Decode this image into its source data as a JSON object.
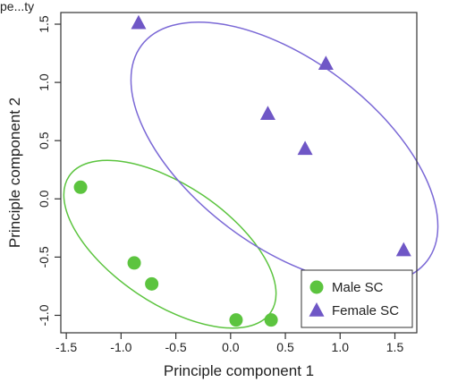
{
  "top_text": "pe...ty",
  "chart_data": {
    "type": "scatter",
    "xlabel": "Principle component 1",
    "ylabel": "Principle component 2",
    "xlim": [
      -1.55,
      1.7
    ],
    "ylim": [
      -1.15,
      1.6
    ],
    "xticks": [
      -1.5,
      -1.0,
      -0.5,
      0.0,
      0.5,
      1.0,
      1.5
    ],
    "xtick_labels": [
      "-1.5",
      "-1.0",
      "-0.5",
      "0.0",
      "0.5",
      "1.0",
      "1.5"
    ],
    "yticks": [
      -1.0,
      -0.5,
      0.0,
      0.5,
      1.0,
      1.5
    ],
    "ytick_labels": [
      "-1.0",
      "-0.5",
      "0.0",
      "0.5",
      "1.0",
      "1.5"
    ],
    "legend_position": "bottom-right",
    "series": [
      {
        "name": "Male SC",
        "marker": "circle",
        "color": "#5cc43f",
        "ellipse_color": "#5cc43f",
        "points": [
          {
            "x": -1.37,
            "y": 0.1
          },
          {
            "x": -0.88,
            "y": -0.55
          },
          {
            "x": -0.72,
            "y": -0.73
          },
          {
            "x": 0.05,
            "y": -1.04
          },
          {
            "x": 0.37,
            "y": -1.04
          }
        ]
      },
      {
        "name": "Female SC",
        "marker": "triangle",
        "color": "#6f57c6",
        "ellipse_color": "#7b69d6",
        "points": [
          {
            "x": -0.84,
            "y": 1.51
          },
          {
            "x": 0.87,
            "y": 1.16
          },
          {
            "x": 0.34,
            "y": 0.73
          },
          {
            "x": 0.68,
            "y": 0.43
          },
          {
            "x": 1.58,
            "y": -0.44
          }
        ]
      }
    ]
  }
}
